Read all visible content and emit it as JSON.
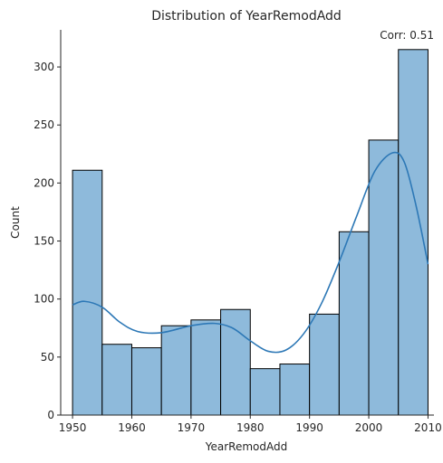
{
  "chart_data": {
    "type": "bar",
    "title": "Distribution of YearRemodAdd",
    "xlabel": "YearRemodAdd",
    "ylabel": "Count",
    "annotation": "Corr: 0.51",
    "xlim": [
      1948,
      2011
    ],
    "ylim": [
      0,
      332
    ],
    "xticks": [
      1950,
      1960,
      1970,
      1980,
      1990,
      2000,
      2010
    ],
    "yticks": [
      0,
      50,
      100,
      150,
      200,
      250,
      300
    ],
    "bin_edges": [
      1950,
      1955,
      1960,
      1965,
      1970,
      1975,
      1980,
      1985,
      1990,
      1995,
      2000,
      2005,
      2010
    ],
    "counts": [
      211,
      61,
      58,
      77,
      82,
      91,
      40,
      44,
      87,
      158,
      237,
      315
    ],
    "kde": {
      "x": [
        1950,
        1952,
        1955,
        1958,
        1961,
        1965,
        1970,
        1974,
        1977,
        1980,
        1983,
        1986,
        1989,
        1992,
        1995,
        1998,
        2001,
        2004,
        2006,
        2008,
        2010
      ],
      "y": [
        95,
        98,
        93,
        80,
        72,
        71,
        77,
        79,
        75,
        64,
        55,
        56,
        70,
        96,
        132,
        172,
        210,
        226,
        218,
        180,
        130
      ]
    },
    "colors": {
      "bar_fill": "#8ebadb",
      "bar_edge": "#000000",
      "kde_line": "#2d78b6",
      "axis": "#262626"
    },
    "grid": false,
    "legend": "none"
  }
}
